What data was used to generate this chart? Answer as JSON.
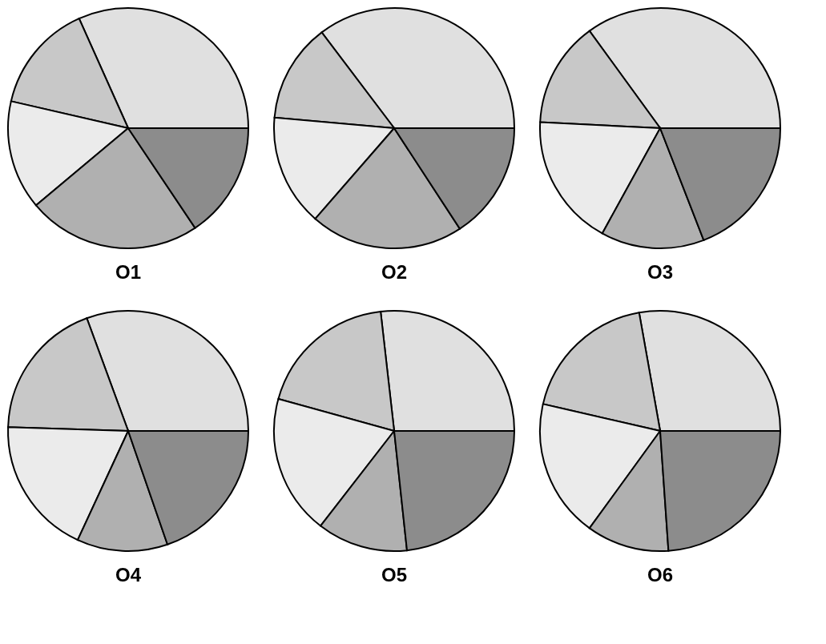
{
  "chart_data": [
    {
      "type": "pie",
      "title": "O1",
      "categories": [
        null,
        null,
        null,
        null,
        null
      ],
      "values": [
        31.7,
        14.7,
        14.7,
        23.3,
        15.6
      ],
      "colors": [
        "#e0e0e0",
        "#c8c8c8",
        "#ebebeb",
        "#b0b0b0",
        "#8c8c8c"
      ]
    },
    {
      "type": "pie",
      "title": "O2",
      "categories": [
        null,
        null,
        null,
        null,
        null
      ],
      "values": [
        35.3,
        13.3,
        15.0,
        20.6,
        15.8
      ],
      "colors": [
        "#e0e0e0",
        "#c8c8c8",
        "#ebebeb",
        "#b0b0b0",
        "#8c8c8c"
      ]
    },
    {
      "type": "pie",
      "title": "O3",
      "categories": [
        null,
        null,
        null,
        null,
        null
      ],
      "values": [
        35.0,
        14.2,
        17.8,
        13.9,
        19.1
      ],
      "colors": [
        "#e0e0e0",
        "#c8c8c8",
        "#ebebeb",
        "#b0b0b0",
        "#8c8c8c"
      ]
    },
    {
      "type": "pie",
      "title": "O4",
      "categories": [
        null,
        null,
        null,
        null,
        null
      ],
      "values": [
        30.6,
        18.9,
        18.6,
        12.2,
        19.7
      ],
      "colors": [
        "#e0e0e0",
        "#c8c8c8",
        "#ebebeb",
        "#b0b0b0",
        "#8c8c8c"
      ]
    },
    {
      "type": "pie",
      "title": "O5",
      "categories": [
        null,
        null,
        null,
        null,
        null
      ],
      "values": [
        26.8,
        18.9,
        18.8,
        12.2,
        23.3
      ],
      "colors": [
        "#e0e0e0",
        "#c8c8c8",
        "#ebebeb",
        "#b0b0b0",
        "#8c8c8c"
      ]
    },
    {
      "type": "pie",
      "title": "O6",
      "categories": [
        null,
        null,
        null,
        null,
        null
      ],
      "values": [
        27.8,
        18.6,
        18.6,
        11.1,
        23.9
      ],
      "colors": [
        "#e0e0e0",
        "#c8c8c8",
        "#ebebeb",
        "#b0b0b0",
        "#8c8c8c"
      ]
    }
  ]
}
